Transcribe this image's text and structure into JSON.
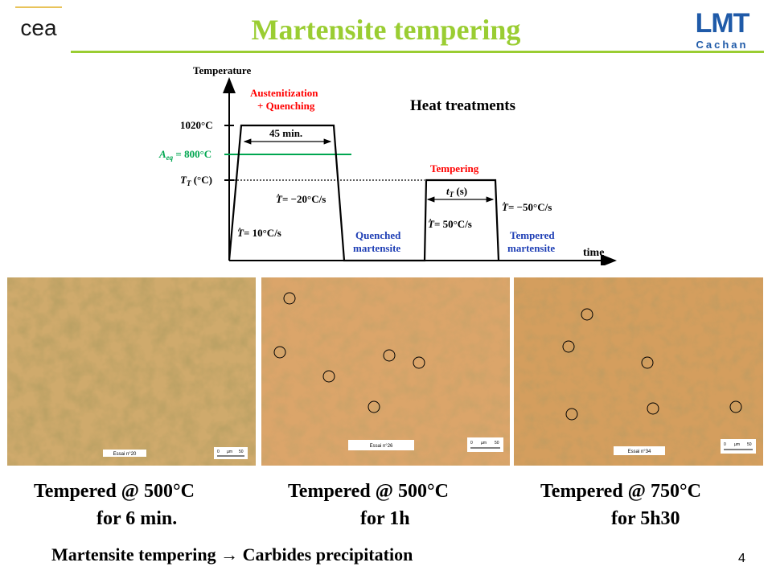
{
  "slide": {
    "title": "Martensite tempering",
    "number": "4",
    "conclusion": "Martensite tempering → Carbides precipitation"
  },
  "logos": {
    "left_text": "cea",
    "right_text": "LMT",
    "right_subtitle": "Cachan"
  },
  "diagram": {
    "title": "Heat treatments",
    "y_axis_label": "Temperature",
    "x_axis_label": "time",
    "levels": {
      "austenitization_temp": "1020°C",
      "aeq_label": "A",
      "aeq_subscript": "eq",
      "aeq_value": " = 800°C",
      "tempering_temp": "T",
      "tempering_temp_subscript": "T",
      "tempering_temp_unit": " (°C)"
    },
    "stage1": {
      "label_line1": "Austenitization",
      "label_line2": "+ Quenching",
      "duration": "45 min.",
      "heating_rate": "= 10°C/s",
      "cooling_rate": "= −20°C/s",
      "result_line1": "Quenched",
      "result_line2": "martensite"
    },
    "stage2": {
      "label": "Tempering",
      "duration_prefix": "t",
      "duration_subscript": "T",
      "duration_suffix": " (s)",
      "heating_rate": "= 50°C/s",
      "cooling_rate": "= −50°C/s",
      "result_line1": "Tempered",
      "result_line2": "martensite"
    },
    "rate_symbol": "T",
    "colors": {
      "stage_label": "#ff0000",
      "result_label": "#1f3fb5",
      "aeq_line": "#00a650",
      "curve": "#000000"
    }
  },
  "micrographs": [
    {
      "label": "Essai n°20",
      "scale_tick_0": "0",
      "scale_unit": "µm",
      "scale_tick_1": "50",
      "carbide_markers": 0
    },
    {
      "label": "Essai n°26",
      "scale_tick_0": "0",
      "scale_unit": "µm",
      "scale_tick_1": "50",
      "carbide_markers": 6
    },
    {
      "label": "Essai n°34",
      "scale_tick_0": "0",
      "scale_unit": "µm",
      "scale_tick_1": "50",
      "carbide_markers": 6
    }
  ],
  "captions": [
    {
      "line1": "Tempered @ 500°C",
      "line2": "for 6 min."
    },
    {
      "line1": "Tempered @ 500°C",
      "line2": "for 1h"
    },
    {
      "line1": "Tempered @ 750°C",
      "line2": "for 5h30"
    }
  ]
}
